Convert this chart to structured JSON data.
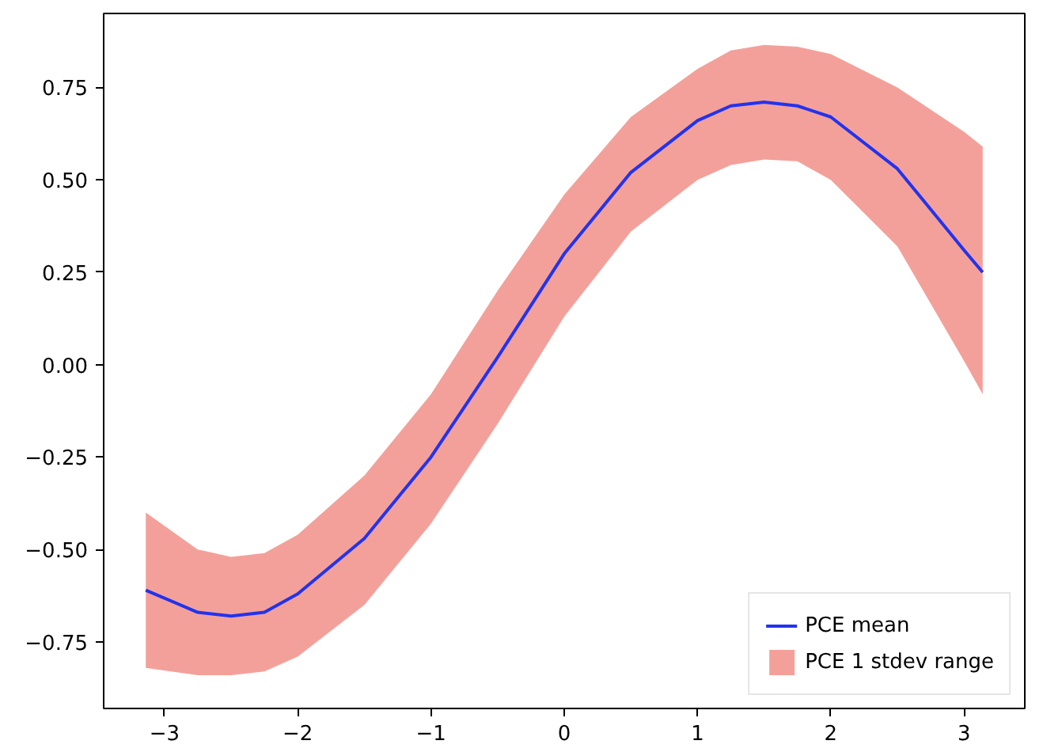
{
  "chart_data": {
    "type": "line",
    "x": [
      -3.14,
      -2.75,
      -2.5,
      -2.25,
      -2,
      -1.5,
      -1,
      -0.5,
      0,
      0.5,
      1,
      1.25,
      1.5,
      1.75,
      2,
      2.5,
      3,
      3.14
    ],
    "series": [
      {
        "name": "PCE mean",
        "color": "#2233ee",
        "values": [
          -0.61,
          -0.67,
          -0.68,
          -0.67,
          -0.62,
          -0.47,
          -0.25,
          0.02,
          0.3,
          0.52,
          0.66,
          0.7,
          0.71,
          0.7,
          0.67,
          0.53,
          0.31,
          0.25
        ],
        "lower": [
          -0.82,
          -0.84,
          -0.84,
          -0.83,
          -0.79,
          -0.65,
          -0.43,
          -0.16,
          0.13,
          0.36,
          0.5,
          0.54,
          0.555,
          0.55,
          0.5,
          0.32,
          0.01,
          -0.08
        ],
        "upper": [
          -0.4,
          -0.5,
          -0.52,
          -0.51,
          -0.46,
          -0.3,
          -0.08,
          0.2,
          0.46,
          0.67,
          0.8,
          0.85,
          0.865,
          0.86,
          0.84,
          0.75,
          0.63,
          0.59
        ]
      },
      {
        "type": "area",
        "name": "PCE 1 stdev range",
        "color": "#f4a09a",
        "values": [
          null,
          null,
          null,
          null,
          null,
          null,
          null,
          null,
          null,
          null,
          null,
          null,
          null,
          null,
          null,
          null,
          null,
          null
        ]
      }
    ],
    "xlim": [
      -3.456,
      3.456
    ],
    "ylim": [
      -0.93,
      0.95
    ],
    "xticks": [
      {
        "value": -3,
        "label": "−3"
      },
      {
        "value": -2,
        "label": "−2"
      },
      {
        "value": -1,
        "label": "−1"
      },
      0,
      1,
      2,
      3
    ],
    "yticks": [
      {
        "value": -0.75,
        "label": "−0.75"
      },
      {
        "value": -0.5,
        "label": "−0.50"
      },
      {
        "value": -0.25,
        "label": "−0.25"
      },
      {
        "value": 0,
        "label": "0.00"
      },
      {
        "value": 0.25,
        "label": "0.25"
      },
      {
        "value": 0.5,
        "label": "0.50"
      },
      {
        "value": 0.75,
        "label": "0.75"
      }
    ],
    "grid": false,
    "legend": "bottom right"
  }
}
